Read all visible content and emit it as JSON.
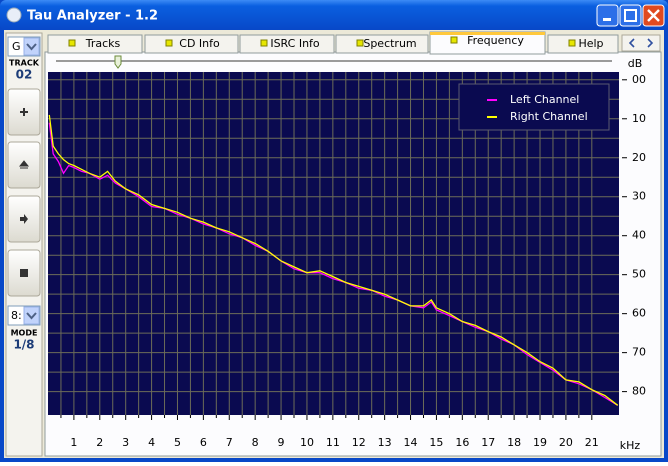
{
  "window": {
    "title": "Tau Analyzer - 1.2"
  },
  "tabs": [
    "Tracks",
    "CD Info",
    "ISRC Info",
    "Spectrum",
    "Frequency",
    "Help"
  ],
  "left_panel": {
    "drive": "G",
    "track_label": "TRACK",
    "track": "02",
    "mode_select": "8:",
    "mode_label": "MODE",
    "mode": "1/8"
  },
  "chart_data": {
    "type": "line",
    "y_label": "dB",
    "x_label": "kHz",
    "x": [
      0.05,
      0.2,
      0.4,
      0.6,
      0.8,
      1,
      1.3,
      1.6,
      2,
      2.3,
      2.6,
      3,
      3.5,
      4,
      4.5,
      5,
      5.5,
      6,
      6.5,
      7,
      7.5,
      8,
      8.5,
      9,
      9.5,
      10,
      10.5,
      11,
      11.5,
      12,
      12.5,
      13,
      13.5,
      14,
      14.5,
      14.8,
      15,
      15.5,
      16,
      16.5,
      17,
      17.5,
      18,
      18.5,
      19,
      19.5,
      20,
      20.5,
      21,
      21.5,
      22
    ],
    "series": [
      {
        "name": "Left Channel",
        "color": "#ff00ff",
        "values": [
          -11,
          -19,
          -21,
          -24,
          -22,
          -22.5,
          -23.5,
          -24,
          -25.5,
          -24.5,
          -26.5,
          -28,
          -30,
          -32.5,
          -33,
          -34.5,
          -35.5,
          -37,
          -38,
          -39.5,
          -40.5,
          -42.5,
          -44,
          -46.5,
          -48.5,
          -49.5,
          -49.5,
          -51,
          -52,
          -53.5,
          -54,
          -55.5,
          -56.5,
          -58,
          -58.5,
          -57,
          -59,
          -60.5,
          -62,
          -63.5,
          -64.6,
          -66.5,
          -68,
          -70.5,
          -72.5,
          -74.5,
          -77,
          -78,
          -79.5,
          -81.5,
          -83.5
        ]
      },
      {
        "name": "Right Channel",
        "color": "#ffff00",
        "values": [
          -9,
          -17,
          -19,
          -20.5,
          -21.5,
          -22,
          -23,
          -24,
          -25,
          -23.5,
          -26,
          -28,
          -29.5,
          -32,
          -33,
          -34,
          -35.5,
          -36.5,
          -38,
          -39,
          -40.5,
          -42,
          -44,
          -46.5,
          -48,
          -49.5,
          -49,
          -50.5,
          -52,
          -53,
          -54,
          -55,
          -56.5,
          -58,
          -58,
          -56.5,
          -58.5,
          -60,
          -62,
          -63,
          -64.6,
          -66,
          -68,
          -70,
          -72.3,
          -74,
          -77,
          -77.5,
          -79.5,
          -81,
          -83.5
        ]
      }
    ],
    "xlim": [
      0,
      22.05
    ],
    "xticks": [
      1,
      2,
      3,
      4,
      5,
      6,
      7,
      8,
      9,
      10,
      11,
      12,
      13,
      14,
      15,
      16,
      17,
      18,
      19,
      20,
      21
    ],
    "ylim": [
      -86,
      2
    ],
    "yticks": [
      {
        "value": 0,
        "label": "00"
      },
      {
        "value": -10,
        "label": "10"
      },
      {
        "value": -20,
        "label": "20"
      },
      {
        "value": -30,
        "label": "30"
      },
      {
        "value": -40,
        "label": "40"
      },
      {
        "value": -50,
        "label": "50"
      },
      {
        "value": -60,
        "label": "60"
      },
      {
        "value": -70,
        "label": "70"
      },
      {
        "value": -80,
        "label": "80"
      }
    ],
    "grid": true,
    "legend": "top-right"
  }
}
